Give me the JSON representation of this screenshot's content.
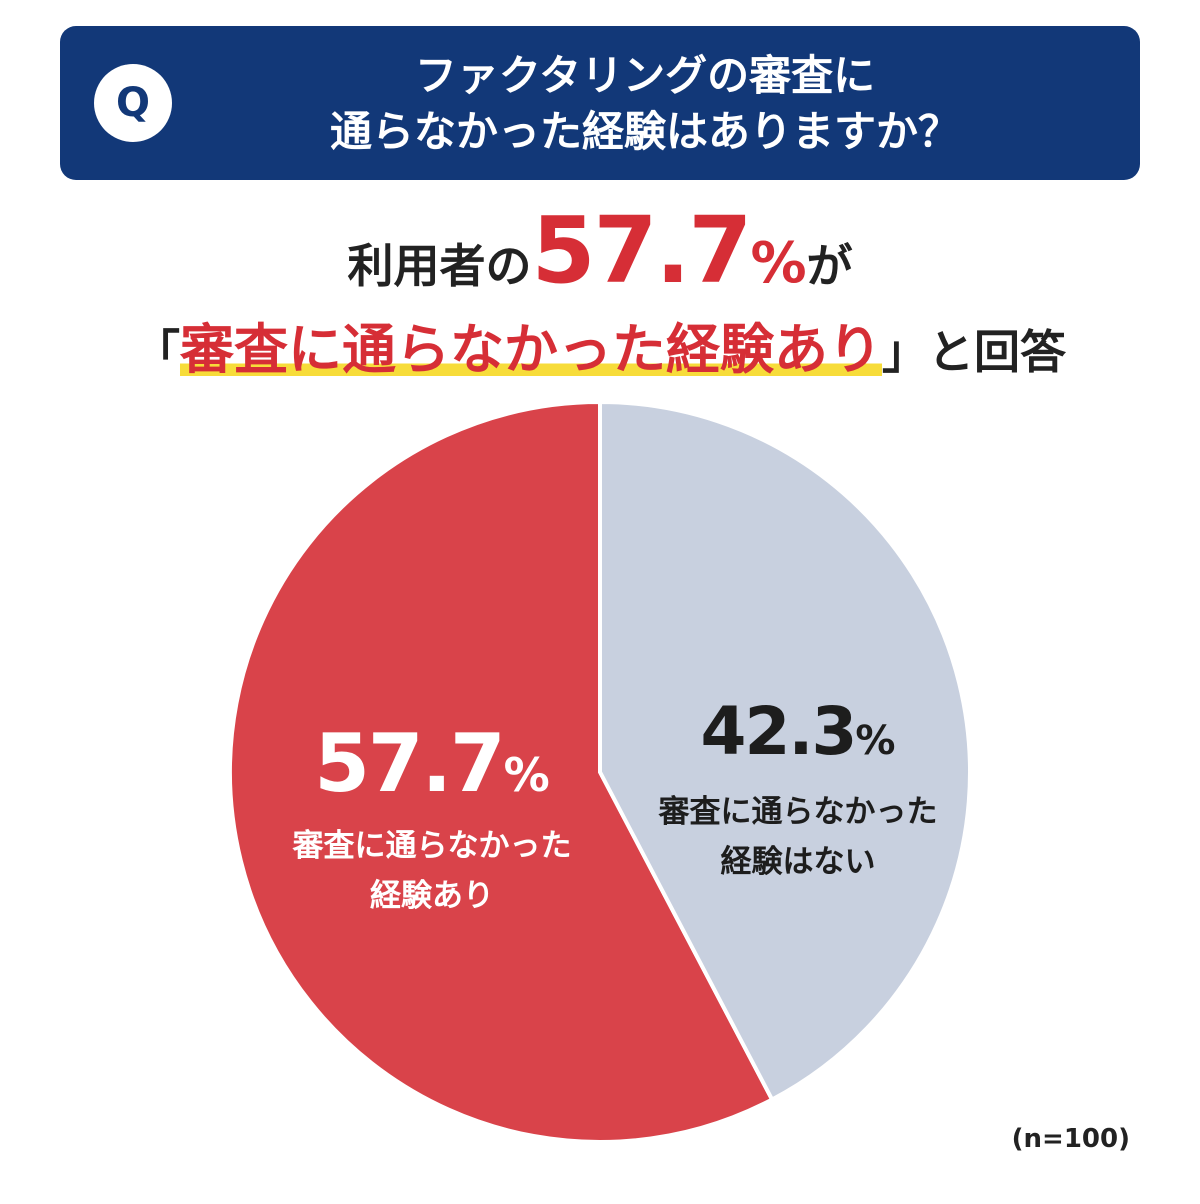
{
  "question": {
    "badge": "Q",
    "line1": "ファクタリングの審査に",
    "line2": "通らなかった経験はありますか？"
  },
  "headline": {
    "part1": "利用者の",
    "big_value": "57.7",
    "percent": "%",
    "part2": "が",
    "bracket_open": "「",
    "highlight": "審査に通らなかった経験あり",
    "bracket_close": "」",
    "part3": "と回答"
  },
  "chart_data": {
    "type": "pie",
    "slices": [
      {
        "label": "審査に通らなかった経験あり",
        "value": 57.7,
        "color": "#d9434a"
      },
      {
        "label": "審査に通らなかった経験はない",
        "value": 42.3,
        "color": "#c8d0df"
      }
    ],
    "slice_labels": [
      {
        "value": "57.7",
        "unit": "%",
        "line1": "審査に通らなかった",
        "line2": "経験あり"
      },
      {
        "value": "42.3",
        "unit": "%",
        "line1": "審査に通らなかった",
        "line2": "経験はない"
      }
    ],
    "start": "top",
    "direction": "counterclockwise for first slice",
    "note": "(n=100)"
  }
}
